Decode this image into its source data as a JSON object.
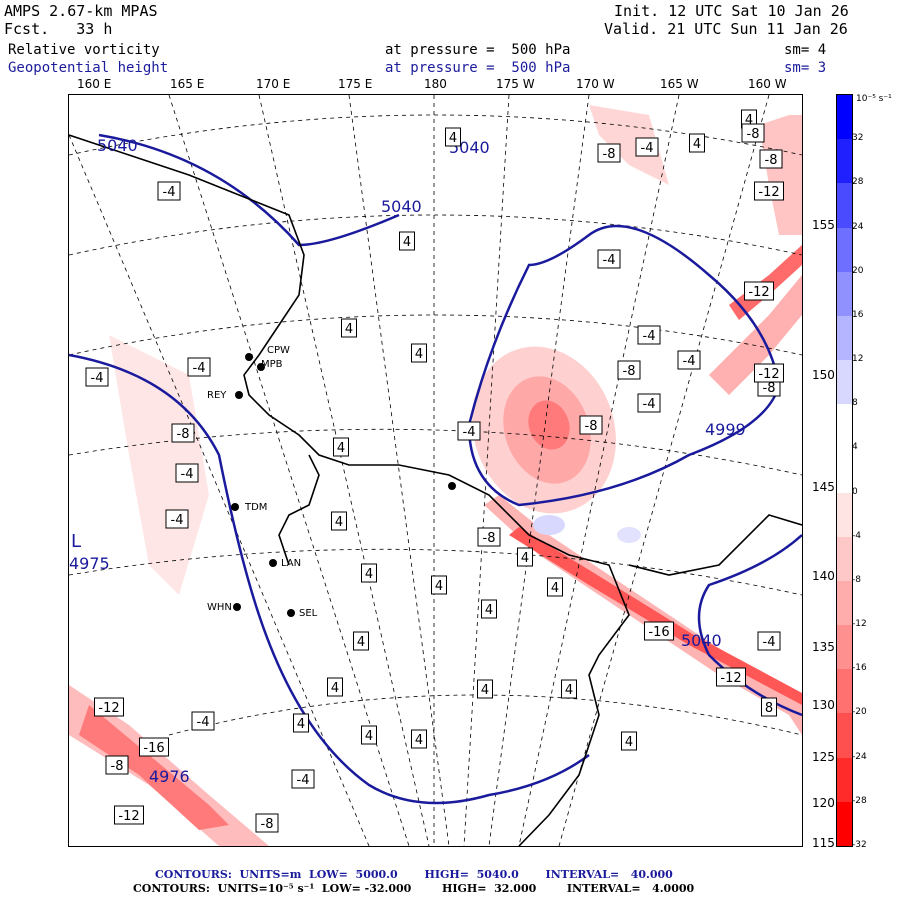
{
  "header": {
    "model": "AMPS 2.67-km MPAS",
    "fcst": "Fcst.   33 h",
    "init": "Init. 12 UTC Sat 10 Jan 26",
    "valid": "Valid. 21 UTC Sun 11 Jan 26",
    "field1_name": "Relative vorticity",
    "field1_level": "at pressure =  500 hPa",
    "field1_smooth": "sm= 4",
    "field2_name": "Geopotential height",
    "field2_level": "at pressure =  500 hPa",
    "field2_smooth": "sm= 3"
  },
  "longitude_labels": [
    "160 E",
    "165 E",
    "170 E",
    "175 E",
    "180",
    "175 W",
    "170 W",
    "165 W",
    "160 W"
  ],
  "latitude_labels": [
    "155 W",
    "150 W",
    "145 W",
    "140 W",
    "135 W",
    "130 W",
    "125 W",
    "120 W",
    "115 W"
  ],
  "colorbar": {
    "unit": "10⁻⁵ s⁻¹",
    "ticks": [
      "32",
      "28",
      "24",
      "20",
      "16",
      "12",
      "8",
      "4",
      "0",
      "-4",
      "-8",
      "-12",
      "-16",
      "-20",
      "-24",
      "-28",
      "-32"
    ],
    "colors": [
      "#0000ff",
      "#2020ff",
      "#4a4aff",
      "#6f6fff",
      "#9090ff",
      "#b4b4ff",
      "#d8d8ff",
      "#ffffff",
      "#ffffff",
      "#ffe4e4",
      "#ffc8c8",
      "#ffacac",
      "#ff9090",
      "#ff7070",
      "#ff5050",
      "#ff2a2a",
      "#ff0000"
    ]
  },
  "stations": [
    "CPW",
    "MPB",
    "REY",
    "TDM",
    "LAN",
    "WHN",
    "SEL"
  ],
  "height_labels": [
    "5040",
    "5040",
    "5040",
    "4975",
    "4999",
    "4976",
    "5040"
  ],
  "low_marker": "L",
  "vorticity_labels": [
    "4",
    "-4",
    "-8",
    "-12",
    "-16",
    "8"
  ],
  "footer": {
    "line1": "CONTOURS:  UNITS=m  LOW=  5000.0       HIGH=  5040.0       INTERVAL=   40.000",
    "line2": "CONTOURS:  UNITS=10⁻⁵ s⁻¹  LOW= -32.000        HIGH=  32.000        INTERVAL=   4.0000"
  },
  "colors": {
    "height_contour": "#1a1a9c",
    "header_blue": "#1c1c9c",
    "pos_vort": "#ff4040",
    "neg_vort": "#8080ff"
  }
}
